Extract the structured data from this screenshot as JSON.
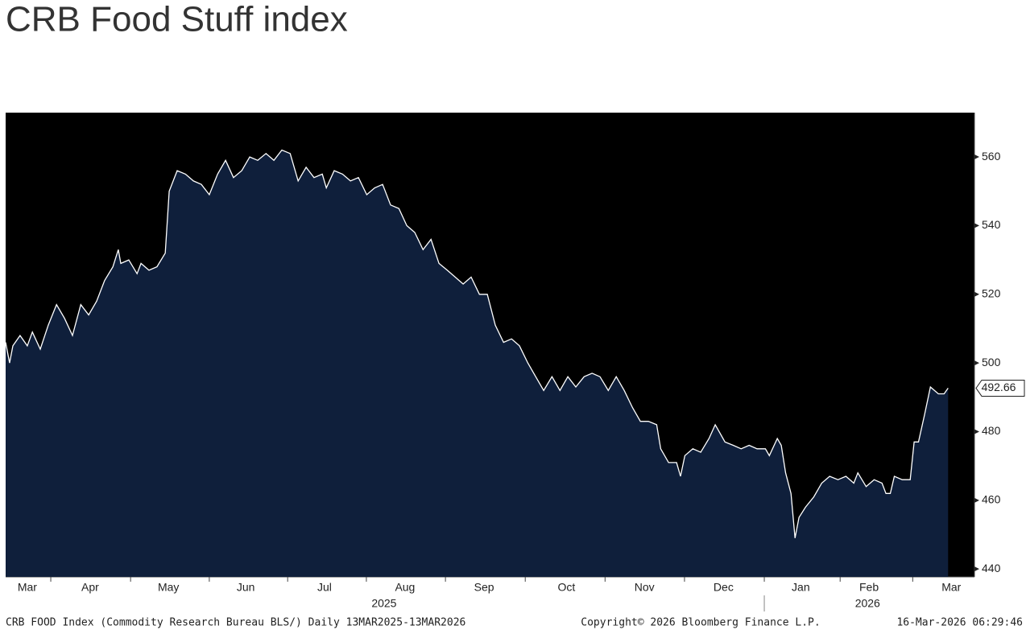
{
  "chart_data": {
    "type": "area",
    "title": "CRB Food Stuff index",
    "footer_left": "CRB FOOD Index (Commodity Research Bureau BLS/) Daily 13MAR2025-13MAR2026",
    "footer_center": "Copyright© 2026 Bloomberg Finance L.P.",
    "footer_right": "16-Mar-2026 06:29:46",
    "xlim": [
      0,
      268.3
    ],
    "ylim": [
      437.7,
      572.9
    ],
    "yticks": [
      440,
      460,
      480,
      500,
      520,
      540,
      560
    ],
    "xticks": [
      12.5,
      34.6,
      56.4,
      78.1,
      99.9,
      121.8,
      143.9,
      166,
      188,
      210.1,
      231.1,
      251.2
    ],
    "month_labels": [
      {
        "value": 6,
        "label": "Mar"
      },
      {
        "value": 23.4,
        "label": "Apr"
      },
      {
        "value": 45.1,
        "label": "May"
      },
      {
        "value": 66.5,
        "label": "Jun"
      },
      {
        "value": 88.3,
        "label": "Jul"
      },
      {
        "value": 110.6,
        "label": "Aug"
      },
      {
        "value": 132.5,
        "label": "Sep"
      },
      {
        "value": 155.3,
        "label": "Oct"
      },
      {
        "value": 176.9,
        "label": "Nov"
      },
      {
        "value": 198.8,
        "label": "Dec"
      },
      {
        "value": 220.2,
        "label": "Jan"
      },
      {
        "value": 239.1,
        "label": "Feb"
      },
      {
        "value": 261.9,
        "label": "Mar"
      }
    ],
    "year_labels": [
      {
        "value": 104.8,
        "label": "2025"
      },
      {
        "value": 238.7,
        "label": "2026"
      }
    ],
    "year_separator": 210.1,
    "series": [
      {
        "name": "CRB FOOD Index",
        "color": "#ffffff",
        "fill": "#0f1f3b",
        "x": [
          0,
          1.1,
          2.0,
          4.0,
          6.0,
          7.4,
          9.6,
          11.8,
          14.1,
          16.3,
          18.5,
          20.8,
          23.0,
          25.2,
          27.4,
          29.7,
          31.2,
          31.9,
          34.1,
          36.4,
          37.5,
          39.7,
          41.9,
          44.2,
          45.3,
          47.5,
          49.8,
          52.0,
          54.2,
          56.4,
          58.7,
          60.9,
          63.1,
          65.4,
          67.6,
          69.8,
          72.1,
          74.3,
          76.5,
          78.8,
          81.0,
          83.2,
          85.4,
          87.7,
          88.8,
          91.0,
          93.3,
          95.5,
          97.7,
          100.0,
          102.2,
          104.4,
          106.6,
          108.9,
          111.1,
          113.3,
          115.6,
          117.8,
          120.0,
          122.3,
          124.5,
          126.7,
          128.9,
          131.2,
          133.4,
          135.6,
          137.9,
          140.1,
          142.3,
          144.6,
          146.8,
          149.0,
          151.3,
          153.5,
          155.7,
          157.9,
          160.2,
          162.4,
          164.6,
          166.9,
          169.1,
          171.3,
          173.6,
          175.8,
          178.0,
          180.3,
          181.4,
          183.6,
          185.8,
          186.9,
          188.1,
          190.3,
          192.5,
          194.8,
          196.5,
          199.2,
          201.5,
          203.7,
          205.9,
          208.1,
          210.4,
          211.5,
          213.7,
          214.8,
          216.0,
          217.5,
          218.6,
          219.7,
          221.5,
          223.8,
          226.0,
          228.2,
          230.5,
          232.7,
          234.9,
          236.0,
          238.3,
          240.5,
          242.7,
          243.8,
          245.0,
          246.1,
          248.3,
          250.5,
          251.6,
          252.8,
          254.5,
          256.1,
          258.3,
          259.9,
          261
        ],
        "values": [
          506,
          500,
          505,
          508,
          505,
          509,
          504,
          511,
          517,
          513,
          508,
          517,
          514,
          518,
          524,
          528,
          533,
          529,
          530,
          526,
          529,
          527,
          528,
          532,
          550,
          556,
          555,
          553,
          552,
          549,
          555,
          559,
          554,
          556,
          560,
          559,
          561,
          559,
          562,
          561,
          553,
          557,
          554,
          555,
          551,
          556,
          555,
          553,
          554,
          549,
          551,
          552,
          546,
          545,
          540,
          538,
          533,
          536,
          529,
          527,
          525,
          523,
          525,
          520,
          520,
          511,
          506,
          507,
          505,
          500,
          496,
          492,
          496,
          492,
          496,
          493,
          496,
          497,
          496,
          492,
          496,
          492,
          487,
          483,
          483,
          482,
          475,
          471,
          471,
          467,
          473,
          475,
          474,
          478,
          482,
          477,
          476,
          475,
          476,
          475,
          475,
          473,
          478,
          476,
          468,
          462,
          449,
          455,
          458,
          461,
          465,
          467,
          466,
          467,
          465,
          468,
          464,
          466,
          465,
          462,
          462,
          467,
          466,
          466,
          477,
          477,
          485,
          493,
          491,
          491,
          492.66
        ]
      }
    ]
  }
}
